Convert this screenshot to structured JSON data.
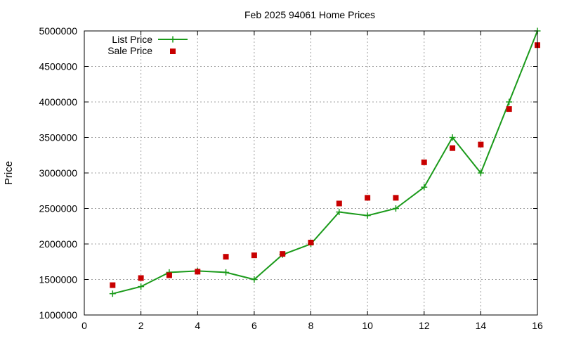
{
  "chart_data": {
    "type": "line",
    "title": "Feb 2025 94061 Home Prices",
    "xlabel": "",
    "ylabel": "Price",
    "xlim": [
      0,
      16
    ],
    "ylim": [
      1000000,
      5000000
    ],
    "xticks": [
      0,
      2,
      4,
      6,
      8,
      10,
      12,
      14,
      16
    ],
    "yticks": [
      1000000,
      1500000,
      2000000,
      2500000,
      3000000,
      3500000,
      4000000,
      4500000,
      5000000
    ],
    "xtick_labels": [
      "0",
      "2",
      "4",
      "6",
      "8",
      "10",
      "12",
      "14",
      "16"
    ],
    "ytick_labels": [
      "1000000",
      "1500000",
      "2000000",
      "2500000",
      "3000000",
      "3500000",
      "4000000",
      "4500000",
      "5000000"
    ],
    "grid": true,
    "legend_position": "top-left",
    "series": [
      {
        "name": "List Price",
        "style": "linespoints",
        "marker": "plus",
        "color": "#1a9a1a",
        "x": [
          1,
          2,
          3,
          4,
          5,
          6,
          7,
          8,
          9,
          10,
          11,
          12,
          13,
          14,
          15,
          16
        ],
        "y": [
          1300000,
          1400000,
          1600000,
          1620000,
          1600000,
          1500000,
          1850000,
          2000000,
          2450000,
          2400000,
          2500000,
          2800000,
          3500000,
          3000000,
          4000000,
          5000000
        ]
      },
      {
        "name": "Sale Price",
        "style": "points",
        "marker": "square",
        "color": "#c80000",
        "x": [
          1,
          2,
          3,
          4,
          5,
          6,
          7,
          8,
          9,
          10,
          11,
          12,
          13,
          14,
          15,
          16
        ],
        "y": [
          1420000,
          1520000,
          1560000,
          1610000,
          1820000,
          1840000,
          1860000,
          2020000,
          2570000,
          2650000,
          2650000,
          3150000,
          3350000,
          3400000,
          3900000,
          4800000
        ]
      }
    ]
  }
}
